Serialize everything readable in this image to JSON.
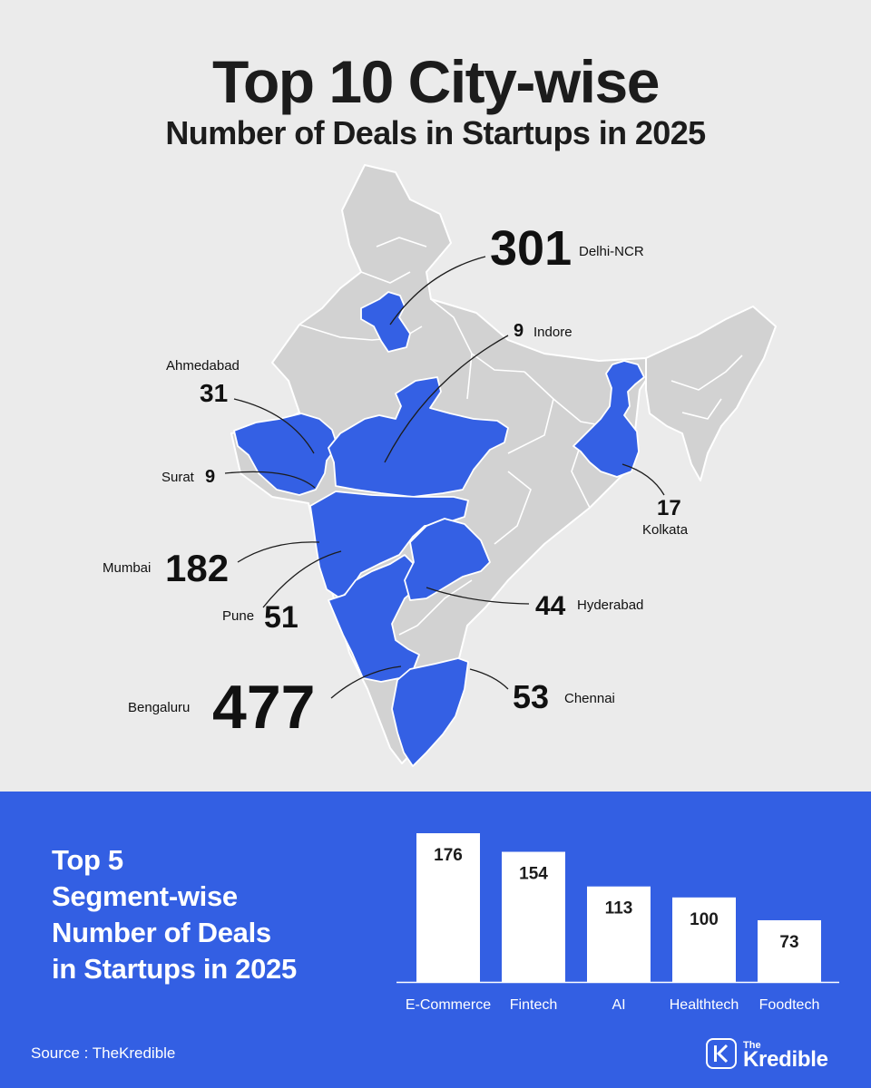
{
  "header": {
    "title": "Top 10 City-wise",
    "subtitle": "Number of Deals in Startups in 2025"
  },
  "cities": [
    {
      "name": "Delhi-NCR",
      "value": "301"
    },
    {
      "name": "Indore",
      "value": "9"
    },
    {
      "name": "Ahmedabad",
      "value": "31"
    },
    {
      "name": "Surat",
      "value": "9"
    },
    {
      "name": "Mumbai",
      "value": "182"
    },
    {
      "name": "Pune",
      "value": "51"
    },
    {
      "name": "Bengaluru",
      "value": "477"
    },
    {
      "name": "Hyderabad",
      "value": "44"
    },
    {
      "name": "Chennai",
      "value": "53"
    },
    {
      "name": "Kolkata",
      "value": "17"
    }
  ],
  "segments": {
    "title_lines": [
      "Top 5",
      "Segment-wise",
      "Number of Deals",
      "in Startups in 2025"
    ]
  },
  "chart_data": {
    "type": "bar",
    "categories": [
      "E-Commerce",
      "Fintech",
      "AI",
      "Healthtech",
      "Foodtech"
    ],
    "values": [
      176,
      154,
      113,
      100,
      73
    ],
    "title": "Top 5 Segment-wise Number of Deals in Startups in 2025",
    "xlabel": "",
    "ylabel": "",
    "ylim": [
      0,
      176
    ],
    "bar_color": "#ffffff",
    "label_color": "#1c1c1c"
  },
  "footer": {
    "source": "Source : TheKredible",
    "logo_top": "The",
    "logo_bottom": "Kredible"
  },
  "colors": {
    "highlight": "#3460e4",
    "map_gray": "#d2d2d2",
    "background": "#ebebeb",
    "panel": "#335fe3"
  }
}
